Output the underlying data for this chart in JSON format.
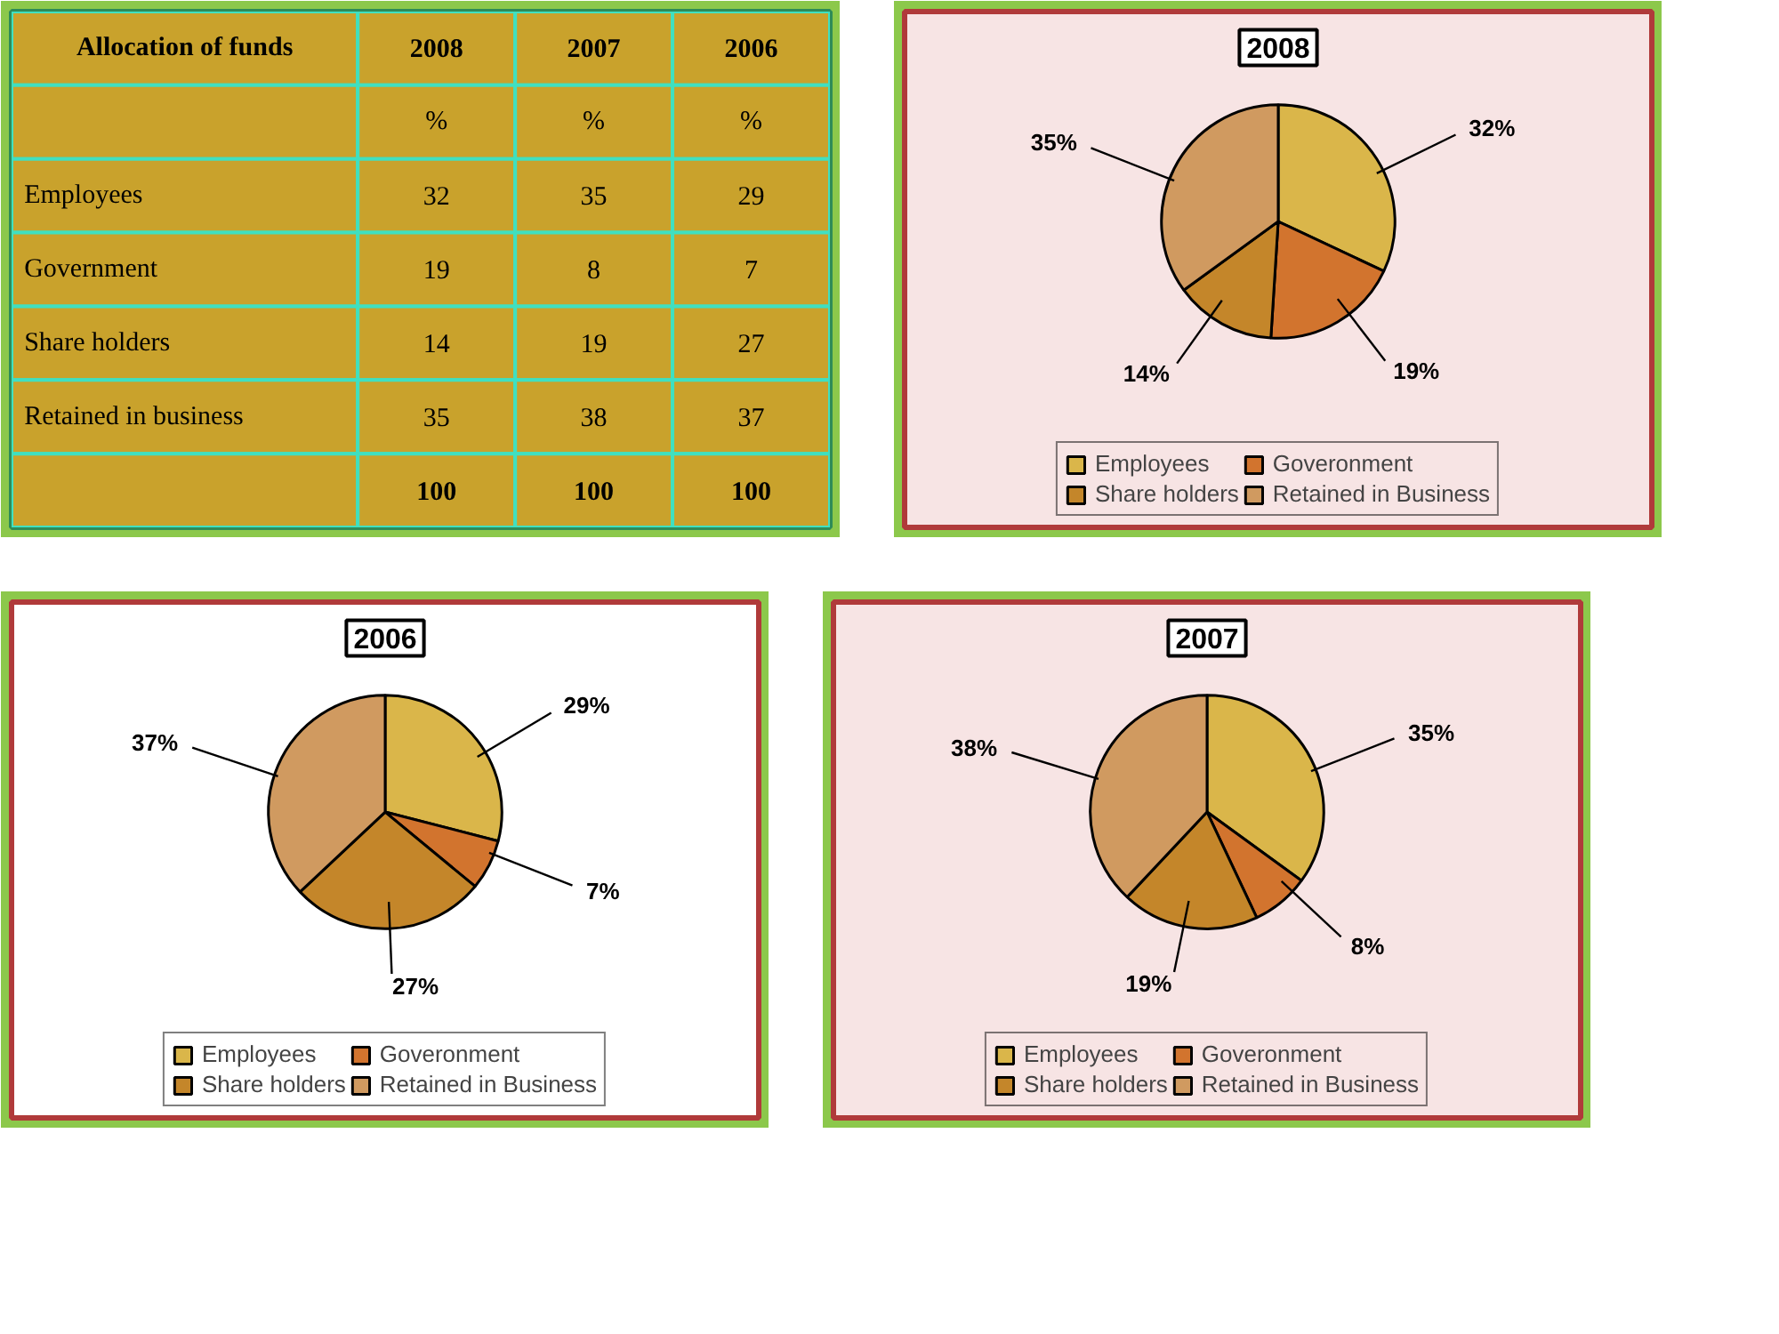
{
  "chart_data": [
    {
      "type": "other",
      "title": "Allocation of funds",
      "categories": [
        "Employees",
        "Government",
        "Share holders",
        "Retained in business"
      ],
      "series": [
        {
          "name": "2008",
          "values": [
            32,
            19,
            14,
            35
          ]
        },
        {
          "name": "2007",
          "values": [
            35,
            8,
            19,
            38
          ]
        },
        {
          "name": "2006",
          "values": [
            29,
            7,
            27,
            37
          ]
        }
      ],
      "annotations": [
        "%",
        "%",
        "%"
      ],
      "totals": [
        "100",
        "100",
        "100"
      ],
      "data_labels": true
    },
    {
      "type": "pie",
      "title": "2008",
      "categories": [
        "Employees",
        "Goveronment",
        "Share holders",
        "Retained in Business"
      ],
      "values": [
        32,
        19,
        14,
        35
      ],
      "colors": [
        "#dab64a",
        "#d2742e",
        "#c4862a",
        "#d09a60"
      ],
      "value_labels": [
        "32%",
        "19%",
        "14%",
        "35%"
      ],
      "legend": "bottom"
    },
    {
      "type": "pie",
      "title": "2006",
      "categories": [
        "Employees",
        "Goveronment",
        "Share holders",
        "Retained in Business"
      ],
      "values": [
        29,
        7,
        27,
        37
      ],
      "colors": [
        "#dab64a",
        "#d2742e",
        "#c4862a",
        "#d09a60"
      ],
      "value_labels": [
        "29%",
        "7%",
        "27%",
        "37%"
      ],
      "legend": "bottom"
    },
    {
      "type": "pie",
      "title": "2007",
      "categories": [
        "Employees",
        "Goveronment",
        "Share holders",
        "Retained in Business"
      ],
      "values": [
        35,
        8,
        19,
        38
      ],
      "colors": [
        "#dab64a",
        "#d2742e",
        "#c4862a",
        "#d09a60"
      ],
      "value_labels": [
        "35%",
        "8%",
        "19%",
        "38%"
      ],
      "legend": "bottom"
    }
  ]
}
